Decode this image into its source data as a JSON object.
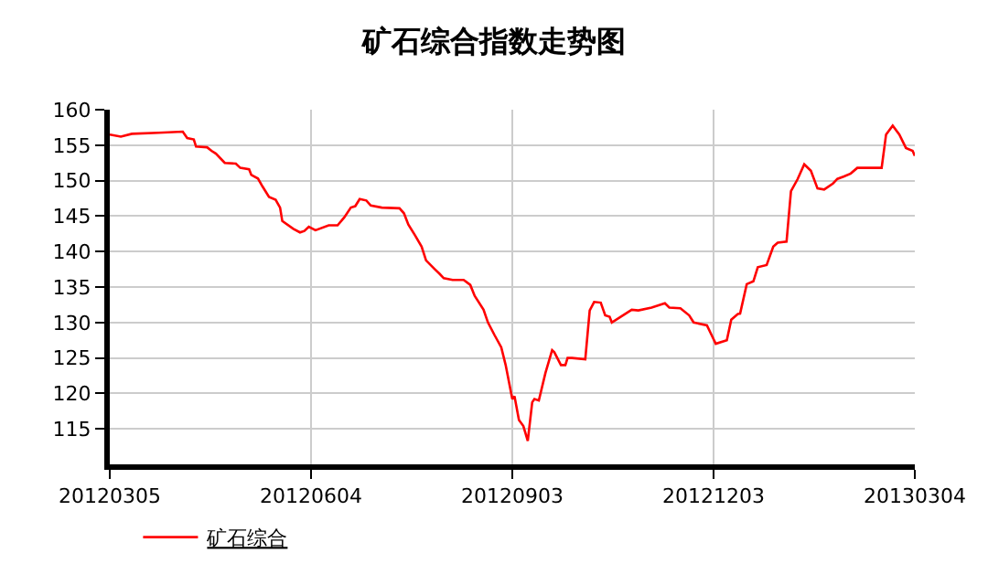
{
  "chart_data": {
    "type": "line",
    "title": "矿石综合指数走势图",
    "x": [
      "2012-03-05",
      "2012-03-10",
      "2012-03-15",
      "2012-03-27",
      "2012-04-07",
      "2012-04-09",
      "2012-04-12",
      "2012-04-13",
      "2012-04-18",
      "2012-04-20",
      "2012-04-22",
      "2012-04-26",
      "2012-05-01",
      "2012-05-03",
      "2012-05-07",
      "2012-05-08",
      "2012-05-11",
      "2012-05-13",
      "2012-05-16",
      "2012-05-19",
      "2012-05-21",
      "2012-05-22",
      "2012-05-27",
      "2012-05-30",
      "2012-06-01",
      "2012-06-03",
      "2012-06-06",
      "2012-06-12",
      "2012-06-16",
      "2012-06-19",
      "2012-06-22",
      "2012-06-24",
      "2012-06-26",
      "2012-06-29",
      "2012-07-01",
      "2012-07-06",
      "2012-07-14",
      "2012-07-16",
      "2012-07-18",
      "2012-07-21",
      "2012-07-24",
      "2012-07-26",
      "2012-07-30",
      "2012-08-01",
      "2012-08-03",
      "2012-08-07",
      "2012-08-12",
      "2012-08-15",
      "2012-08-17",
      "2012-08-21",
      "2012-08-23",
      "2012-08-26",
      "2012-08-29",
      "2012-08-31",
      "2012-09-03",
      "2012-09-04",
      "2012-09-06",
      "2012-09-08",
      "2012-09-10",
      "2012-09-12",
      "2012-09-13",
      "2012-09-15",
      "2012-09-18",
      "2012-09-21",
      "2012-09-22",
      "2012-09-25",
      "2012-09-27",
      "2012-09-28",
      "2012-09-30",
      "2012-10-06",
      "2012-10-08",
      "2012-10-10",
      "2012-10-13",
      "2012-10-15",
      "2012-10-17",
      "2012-10-18",
      "2012-10-22",
      "2012-10-27",
      "2012-10-30",
      "2012-11-05",
      "2012-11-11",
      "2012-11-13",
      "2012-11-18",
      "2012-11-22",
      "2012-11-24",
      "2012-11-30",
      "2012-12-02",
      "2012-12-04",
      "2012-12-09",
      "2012-12-11",
      "2012-12-14",
      "2012-12-15",
      "2012-12-18",
      "2012-12-21",
      "2012-12-23",
      "2012-12-27",
      "2012-12-30",
      "2013-01-01",
      "2013-01-05",
      "2013-01-07",
      "2013-01-10",
      "2013-01-13",
      "2013-01-16",
      "2013-01-19",
      "2013-01-22",
      "2013-01-26",
      "2013-01-28",
      "2013-01-31",
      "2013-02-03",
      "2013-02-06",
      "2013-02-17",
      "2013-02-19",
      "2013-02-22",
      "2013-02-25",
      "2013-02-28",
      "2013-03-03",
      "2013-03-04"
    ],
    "series": [
      {
        "name": "矿石综合",
        "color": "#ff0000",
        "values": [
          156.5,
          156.2,
          156.6,
          156.75,
          156.9,
          156.0,
          155.8,
          154.8,
          154.7,
          154.2,
          153.8,
          152.5,
          152.4,
          151.8,
          151.6,
          150.8,
          150.3,
          149.2,
          147.7,
          147.3,
          146.2,
          144.3,
          143.2,
          142.7,
          142.9,
          143.5,
          143.0,
          143.7,
          143.7,
          144.8,
          146.2,
          146.4,
          147.4,
          147.2,
          146.5,
          146.2,
          146.1,
          145.4,
          143.8,
          142.3,
          140.7,
          138.75,
          137.5,
          136.9,
          136.25,
          136.0,
          136.0,
          135.3,
          133.75,
          131.8,
          130.0,
          128.2,
          126.5,
          124.0,
          119.2,
          119.6,
          116.25,
          115.4,
          113.3,
          118.75,
          119.2,
          119.0,
          122.9,
          126.1,
          125.8,
          124.0,
          124.0,
          125.0,
          125.0,
          124.8,
          131.7,
          132.9,
          132.8,
          131.0,
          130.8,
          130.0,
          130.8,
          131.8,
          131.7,
          132.1,
          132.7,
          132.1,
          132.0,
          131.0,
          130.0,
          129.6,
          128.3,
          127.0,
          127.5,
          130.4,
          131.2,
          131.25,
          135.4,
          135.8,
          137.8,
          138.1,
          140.7,
          141.25,
          141.4,
          148.5,
          150.2,
          152.3,
          151.4,
          148.9,
          148.75,
          149.6,
          150.25,
          150.6,
          151.0,
          151.8,
          151.8,
          156.5,
          157.75,
          156.5,
          154.6,
          154.2,
          153.5
        ]
      }
    ],
    "xlim": [
      "2012-03-05",
      "2013-03-04"
    ],
    "xticks": [
      {
        "value": "2012-03-05",
        "label": "20120305"
      },
      {
        "value": "2012-06-04",
        "label": "20120604"
      },
      {
        "value": "2012-09-03",
        "label": "20120903"
      },
      {
        "value": "2012-12-03",
        "label": "20121203"
      },
      {
        "value": "2013-03-04",
        "label": "20130304"
      }
    ],
    "ylim": [
      110,
      160
    ],
    "yticks": [
      115,
      120,
      125,
      130,
      135,
      140,
      145,
      150,
      155,
      160
    ],
    "grid": true,
    "legend": "bottom left",
    "marker": "none",
    "line_style": "solid"
  }
}
